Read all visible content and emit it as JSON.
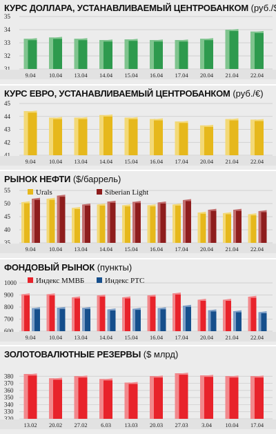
{
  "chart_data": [
    {
      "type": "bar",
      "title": "КУРС ДОЛЛАРА, УСТАНАВЛИВАЕМЫЙ ЦЕНТРОБАНКОМ",
      "unit": "(руб./$)",
      "categories": [
        "9.04",
        "10.04",
        "13.04",
        "14.04",
        "15.04",
        "16.04",
        "17.04",
        "20.04",
        "21.04",
        "22.04"
      ],
      "values": [
        33.3,
        33.4,
        33.3,
        33.2,
        33.25,
        33.2,
        33.2,
        33.3,
        34.0,
        33.85
      ],
      "ylim": [
        31,
        35
      ],
      "yticks": [
        31,
        32,
        33,
        34,
        35
      ],
      "color": "#2e9a4e",
      "light": "#7fc48e"
    },
    {
      "type": "bar",
      "title": "КУРС ЕВРО, УСТАНАВЛИВАЕМЫЙ ЦЕНТРОБАНКОМ",
      "unit": "(руб./€)",
      "categories": [
        "9.04",
        "10.04",
        "13.04",
        "14.04",
        "15.04",
        "16.04",
        "17.04",
        "20.04",
        "21.04",
        "22.04"
      ],
      "values": [
        44.4,
        43.9,
        43.9,
        44.1,
        43.9,
        43.8,
        43.6,
        43.3,
        43.8,
        43.75
      ],
      "ylim": [
        41,
        45
      ],
      "yticks": [
        41,
        42,
        43,
        44,
        45
      ],
      "color": "#e6b81c",
      "light": "#f3d977"
    },
    {
      "type": "bar",
      "title": "РЫНОК НЕФТИ",
      "unit": "($/баррель)",
      "categories": [
        "9.04",
        "10.04",
        "13.04",
        "14.04",
        "15.04",
        "16.04",
        "17.04",
        "20.04",
        "21.04",
        "22.04"
      ],
      "series": [
        {
          "name": "Urals",
          "values": [
            50.5,
            51.8,
            48.3,
            49.6,
            49.3,
            49.3,
            49.6,
            46.5,
            46.3,
            45.9
          ],
          "color": "#e6b81c",
          "light": "#f3d977"
        },
        {
          "name": "Siberian Light",
          "values": [
            51.8,
            53.0,
            49.6,
            50.7,
            50.6,
            50.4,
            51.3,
            47.6,
            47.6,
            47.1
          ],
          "color": "#8e1d1d",
          "light": "#c26d6d"
        }
      ],
      "ylim": [
        35,
        55
      ],
      "yticks": [
        35,
        40,
        45,
        50,
        55
      ]
    },
    {
      "type": "bar",
      "title": "ФОНДОВЫЙ РЫНОК",
      "unit": "(пункты)",
      "categories": [
        "9.04",
        "10.04",
        "13.04",
        "14.04",
        "15.04",
        "16.04",
        "17.04",
        "20.04",
        "21.04",
        "22.04"
      ],
      "series": [
        {
          "name": "Индекс ММВБ",
          "values": [
            905,
            905,
            880,
            895,
            880,
            895,
            912,
            860,
            860,
            885
          ],
          "color": "#e8232b",
          "light": "#f2888c"
        },
        {
          "name": "Индекс РТС",
          "values": [
            790,
            793,
            792,
            780,
            785,
            790,
            810,
            772,
            765,
            757
          ],
          "color": "#164f8c",
          "light": "#7d9fc7"
        }
      ],
      "ylim": [
        600,
        1000
      ],
      "yticks": [
        600,
        700,
        800,
        900,
        1000
      ]
    },
    {
      "type": "bar",
      "title": "ЗОЛОТОВАЛЮТНЫЕ РЕЗЕРВЫ",
      "unit": "($ млрд)",
      "categories": [
        "13.02",
        "20.02",
        "27.02",
        "6.03",
        "13.03",
        "20.03",
        "27.03",
        "3.04",
        "10.04",
        "17.04"
      ],
      "values": [
        383,
        377,
        380,
        376,
        371,
        380,
        384,
        381,
        380,
        380
      ],
      "ylim": [
        320,
        390
      ],
      "yticks": [
        320,
        330,
        340,
        350,
        360,
        370,
        380
      ],
      "color": "#e8232b",
      "light": "#f2888c"
    }
  ]
}
